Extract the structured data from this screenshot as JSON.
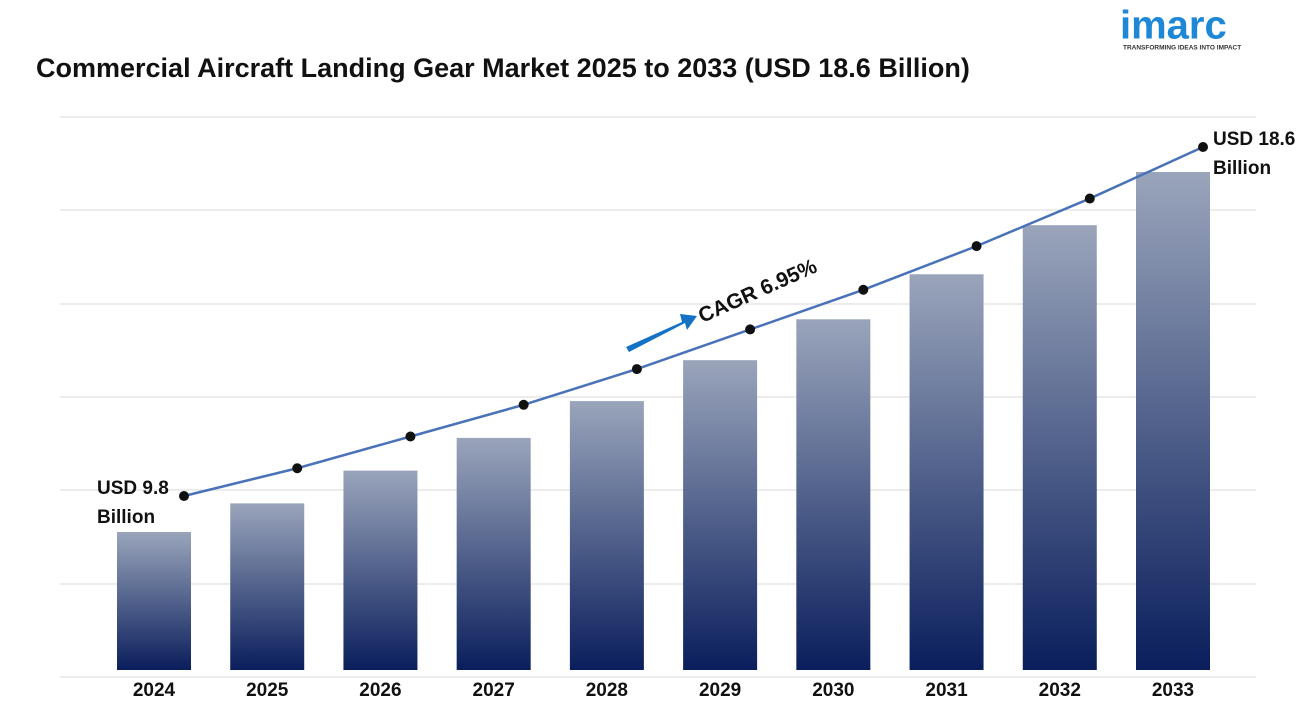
{
  "logo": {
    "name": "imarc",
    "tagline": "TRANSFORMING IDEAS INTO IMPACT"
  },
  "chart_data": {
    "type": "bar-line",
    "title": "Commercial Aircraft Landing Gear Market 2025 to 2033 (USD 18.6 Billion)",
    "annotation": "CAGR 6.95%",
    "categories": [
      "2024",
      "2025",
      "2026",
      "2027",
      "2028",
      "2029",
      "2030",
      "2031",
      "2032",
      "2033"
    ],
    "values": [
      9.8,
      10.5,
      11.3,
      12.1,
      13.0,
      14.0,
      15.0,
      16.1,
      17.3,
      18.6
    ],
    "value_labels": [
      "USD 9.8 Billion",
      null,
      null,
      null,
      null,
      null,
      null,
      null,
      null,
      "USD 18.6 Billion"
    ],
    "bar_color_top": "#9aa5bb",
    "bar_color_bottom": "#0a1e5c",
    "line_color": "#4a72b8",
    "marker_color": "#111111"
  }
}
